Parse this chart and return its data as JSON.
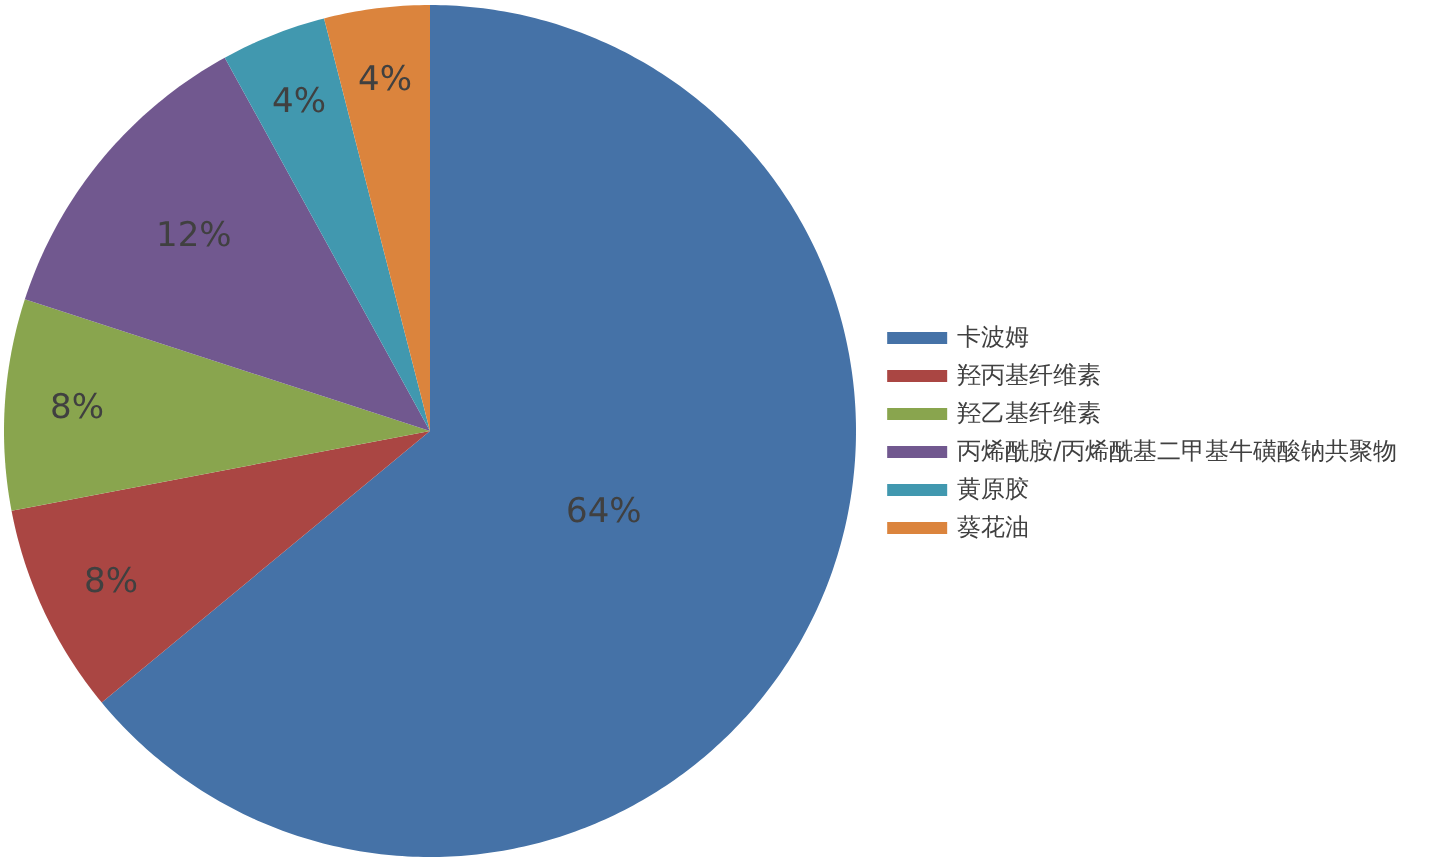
{
  "chart_data": {
    "type": "pie",
    "categories": [
      "卡波姆",
      "羟丙基纤维素",
      "羟乙基纤维素",
      "丙烯酰胺/丙烯酰基二甲基牛磺酸钠共聚物",
      "黄原胶",
      "葵花油"
    ],
    "values": [
      64,
      8,
      8,
      12,
      4,
      4
    ],
    "value_labels": [
      "64%",
      "8%",
      "8%",
      "12%",
      "4%",
      "4%"
    ],
    "colors": [
      "#4572a7",
      "#aa4643",
      "#89a54e",
      "#71588f",
      "#4198af",
      "#db843d"
    ],
    "legend": "right"
  }
}
